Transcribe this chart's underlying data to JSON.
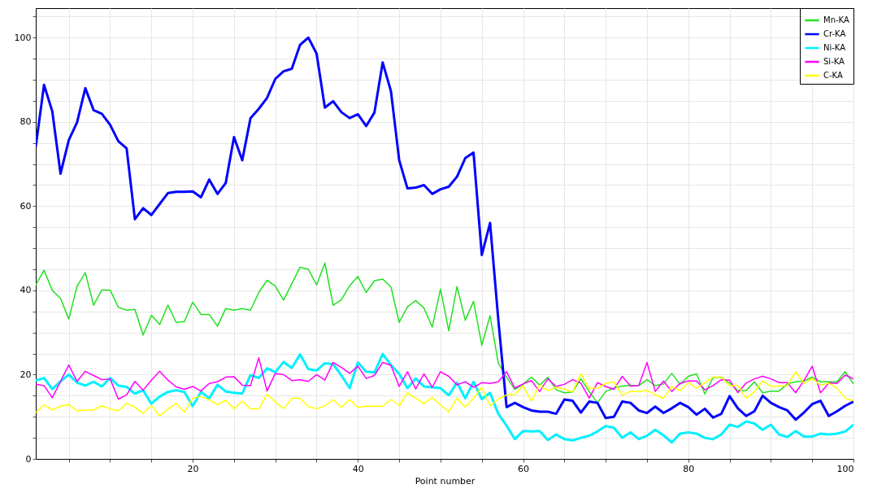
{
  "chart_data": {
    "type": "line",
    "xlabel": "Point number",
    "x": [
      1,
      2,
      3,
      4,
      5,
      6,
      7,
      8,
      9,
      10,
      11,
      12,
      13,
      14,
      15,
      16,
      17,
      18,
      19,
      20,
      21,
      22,
      23,
      24,
      25,
      26,
      27,
      28,
      29,
      30,
      31,
      32,
      33,
      34,
      35,
      36,
      37,
      38,
      39,
      40,
      41,
      42,
      43,
      44,
      45,
      46,
      47,
      48,
      49,
      50,
      51,
      52,
      53,
      54,
      55,
      56,
      57,
      58,
      59,
      60,
      61,
      62,
      63,
      64,
      65,
      66,
      67,
      68,
      69,
      70,
      71,
      72,
      73,
      74,
      75,
      76,
      77,
      78,
      79,
      80,
      81,
      82,
      83,
      84,
      85,
      86,
      87,
      88,
      89,
      90,
      91,
      92,
      93,
      94,
      95,
      96,
      97,
      98,
      99,
      100
    ],
    "series": [
      {
        "name": "Mn-KA",
        "color": "#22e022",
        "values": [
          41.3,
          44.8,
          40,
          38.1,
          33.2,
          41,
          44.2,
          36.5,
          40.1,
          40.1,
          36,
          35.3,
          35.5,
          29.4,
          34.1,
          31.9,
          36.5,
          32.4,
          32.6,
          37.2,
          34.3,
          34.3,
          31.5,
          35.7,
          35.3,
          35.7,
          35.3,
          39.5,
          42.4,
          41,
          37.7,
          41.6,
          45.5,
          45,
          41.3,
          46.5,
          36.5,
          37.8,
          41.1,
          43.3,
          39.5,
          42.3,
          42.7,
          40.8,
          32.4,
          36.1,
          37.6,
          35.8,
          31.3,
          40.3,
          30.4,
          40.9,
          32.9,
          37.4,
          27,
          34,
          22.7,
          19.4,
          16.5,
          17.7,
          19.4,
          17.5,
          19.4,
          16.4,
          15.7,
          15.9,
          19,
          16,
          13.3,
          16,
          16.8,
          17.3,
          17.5,
          17.4,
          18.8,
          17.4,
          17.8,
          20.3,
          17.7,
          19.6,
          20.2,
          15.4,
          19.3,
          19.4,
          18,
          16.2,
          16.2,
          18.3,
          15.7,
          16.1,
          16.1,
          17.8,
          18.3,
          18.5,
          19.4,
          18.3,
          18.3,
          18.3,
          20.7,
          17.8
        ]
      },
      {
        "name": "Cr-KA",
        "color": "#0000ff",
        "values": [
          74.1,
          88.8,
          82.5,
          67.7,
          75.7,
          79.9,
          88,
          82.8,
          81.9,
          79.3,
          75.4,
          73.7,
          56.9,
          59.5,
          57.9,
          60.5,
          63.1,
          63.4,
          63.4,
          63.5,
          62.1,
          66.3,
          62.9,
          65.5,
          76.4,
          70.9,
          80.9,
          83.1,
          85.7,
          90.2,
          92,
          92.6,
          98.3,
          100,
          96.2,
          83.4,
          84.9,
          82.3,
          80.9,
          81.8,
          79,
          82.2,
          94.1,
          87.3,
          70.9,
          64.2,
          64.4,
          65,
          62.9,
          64,
          64.6,
          67,
          71.4,
          72.7,
          48.4,
          56,
          33,
          12.3,
          13.3,
          12.3,
          11.5,
          11.2,
          11.2,
          10.7,
          14.1,
          13.8,
          11,
          13.6,
          13.3,
          9.7,
          10,
          13.6,
          13.3,
          11.5,
          10.9,
          12.4,
          10.9,
          12,
          13.3,
          12.3,
          10.5,
          11.9,
          9.8,
          10.7,
          14.9,
          12,
          10.2,
          11.3,
          15,
          13.3,
          12.3,
          11.5,
          9.3,
          11,
          13,
          13.8,
          10.2,
          11.3,
          12.6,
          13.6
        ]
      },
      {
        "name": "Ni-KA",
        "color": "#00f0ff",
        "values": [
          18.6,
          19.2,
          16.6,
          18.4,
          20,
          18.1,
          17.4,
          18.3,
          17.2,
          19.2,
          17.4,
          17.1,
          15.5,
          16.3,
          13.1,
          14.8,
          15.9,
          16.3,
          15.9,
          12.5,
          15.9,
          14.4,
          17.6,
          16,
          15.7,
          15.5,
          19.9,
          19.2,
          21.5,
          20.6,
          23,
          21.6,
          24.8,
          21.3,
          21,
          22.7,
          22.5,
          19.8,
          16.8,
          22.9,
          20.7,
          20.5,
          24.9,
          22.3,
          20.2,
          16.8,
          19.1,
          17.2,
          17,
          16.8,
          15.1,
          18.1,
          14.4,
          18.3,
          14.2,
          15.7,
          10.7,
          7.9,
          4.7,
          6.6,
          6.5,
          6.6,
          4.5,
          5.8,
          4.7,
          4.4,
          5,
          5.5,
          6.5,
          7.8,
          7.4,
          5,
          6.3,
          4.7,
          5.5,
          6.9,
          5.6,
          3.9,
          6,
          6.3,
          6,
          5,
          4.7,
          5.8,
          8.1,
          7.6,
          8.9,
          8.4,
          6.9,
          8.1,
          5.8,
          5.2,
          6.6,
          5.3,
          5.3,
          6,
          5.8,
          6,
          6.5,
          8.1
        ]
      },
      {
        "name": "Si-KA",
        "color": "#ff00ff",
        "values": [
          17.7,
          17.4,
          14.5,
          18.4,
          22.3,
          18.4,
          20.8,
          19.8,
          18.8,
          19,
          14.2,
          15.2,
          18.4,
          16.3,
          18.7,
          20.8,
          18.7,
          17.1,
          16.5,
          17.2,
          16.1,
          17.9,
          18.3,
          19.4,
          19.5,
          17.5,
          17.4,
          24,
          16.1,
          20.3,
          20,
          18.6,
          18.8,
          18.4,
          20,
          18.7,
          22.9,
          21.7,
          20.3,
          22,
          19.1,
          19.8,
          22.9,
          22.2,
          17.2,
          20.7,
          16.6,
          20.2,
          17,
          20.7,
          19.6,
          17.6,
          18.3,
          17,
          18.1,
          17.9,
          18.3,
          20.7,
          16.8,
          17.8,
          18.6,
          16,
          19,
          17.2,
          17.7,
          18.8,
          18,
          14.4,
          18.1,
          17.2,
          16.5,
          19.6,
          17.3,
          17.4,
          22.9,
          16,
          18.5,
          16,
          17.9,
          18.5,
          18.5,
          16.4,
          17.4,
          18.8,
          18.7,
          15.7,
          18,
          19,
          19.6,
          19,
          18.1,
          18.1,
          15.7,
          18.6,
          22,
          15.7,
          18,
          17.9,
          19.9,
          19
        ]
      },
      {
        "name": "C-KA",
        "color": "#ffff00",
        "values": [
          11,
          12.8,
          11.6,
          12.5,
          12.9,
          11.4,
          11.6,
          11.6,
          12.6,
          11.9,
          11.4,
          13.2,
          12.3,
          10.8,
          12.7,
          10.2,
          11.8,
          13.2,
          11.1,
          14.4,
          14.8,
          14,
          12.9,
          13.9,
          11.9,
          13.7,
          11.9,
          11.9,
          15.3,
          13.5,
          11.9,
          14.4,
          14.4,
          12.4,
          11.9,
          12.6,
          14.1,
          12.2,
          14.1,
          12.2,
          12.5,
          12.5,
          12.5,
          14.1,
          12.6,
          15.7,
          14.4,
          13.1,
          14.6,
          12.8,
          11.2,
          14.4,
          12.3,
          14.4,
          17,
          12.6,
          14.2,
          15.2,
          15.3,
          17.4,
          13.7,
          17.5,
          16.2,
          17,
          16.6,
          15.9,
          20.2,
          16.7,
          16.8,
          17.9,
          18.3,
          15.1,
          16,
          16,
          16.3,
          15.2,
          14.4,
          17.2,
          16.2,
          18.1,
          16.8,
          18.1,
          19.4,
          19.4,
          17.4,
          17.4,
          14.4,
          15.9,
          18.5,
          17.2,
          17.3,
          17.4,
          20.7,
          17.9,
          19.1,
          17.5,
          18,
          16.8,
          14.4,
          13.8
        ]
      }
    ],
    "xlim": [
      1,
      100
    ],
    "xticks": [
      {
        "value": 5,
        "label": null
      },
      {
        "value": 10,
        "label": null
      },
      {
        "value": 15,
        "label": null
      },
      20,
      {
        "value": 25,
        "label": null
      },
      {
        "value": 30,
        "label": null
      },
      {
        "value": 35,
        "label": null
      },
      40,
      {
        "value": 45,
        "label": null
      },
      {
        "value": 50,
        "label": null
      },
      {
        "value": 55,
        "label": null
      },
      60,
      {
        "value": 65,
        "label": null
      },
      {
        "value": 70,
        "label": null
      },
      {
        "value": 75,
        "label": null
      },
      80,
      {
        "value": 85,
        "label": null
      },
      {
        "value": 90,
        "label": null
      },
      {
        "value": 95,
        "label": null
      },
      100
    ],
    "ylim": [
      0,
      107
    ],
    "yticks": [
      0,
      {
        "value": 5,
        "label": null
      },
      {
        "value": 10,
        "label": null
      },
      {
        "value": 15,
        "label": null
      },
      20,
      {
        "value": 25,
        "label": null
      },
      {
        "value": 30,
        "label": null
      },
      {
        "value": 35,
        "label": null
      },
      40,
      {
        "value": 45,
        "label": null
      },
      {
        "value": 50,
        "label": null
      },
      {
        "value": 55,
        "label": null
      },
      60,
      {
        "value": 65,
        "label": null
      },
      {
        "value": 70,
        "label": null
      },
      {
        "value": 75,
        "label": null
      },
      80,
      {
        "value": 85,
        "label": null
      },
      {
        "value": 90,
        "label": null
      },
      {
        "value": 95,
        "label": null
      },
      100,
      {
        "value": 105,
        "label": null
      }
    ],
    "grid": true,
    "legend": "top right",
    "marker": "none",
    "line_style": "solid"
  }
}
